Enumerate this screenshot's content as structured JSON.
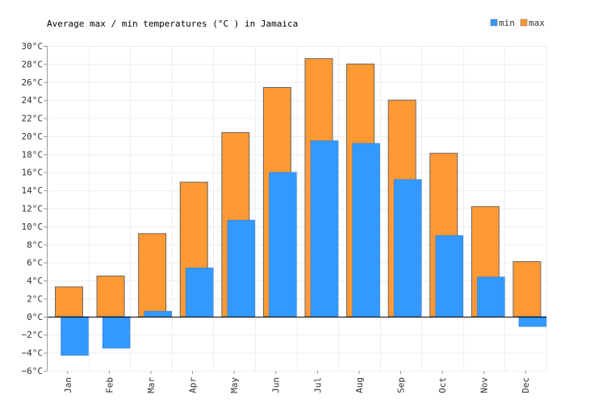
{
  "chart_data": {
    "type": "bar",
    "title": "Average max / min temperatures (°C ) in Jamaica",
    "categories": [
      "Jan",
      "Feb",
      "Mar",
      "Apr",
      "May",
      "Jun",
      "Jul",
      "Aug",
      "Sep",
      "Oct",
      "Nov",
      "Dec"
    ],
    "series": [
      {
        "name": "max",
        "color": "#ff9933",
        "values": [
          3.3,
          4.5,
          9.2,
          14.9,
          20.4,
          25.4,
          28.6,
          28.0,
          24.0,
          18.1,
          12.2,
          6.1
        ]
      },
      {
        "name": "min",
        "color": "#3399ff",
        "values": [
          -4.3,
          -3.5,
          0.6,
          5.4,
          10.7,
          16.0,
          19.5,
          19.2,
          15.2,
          9.0,
          4.4,
          -1.1
        ]
      }
    ],
    "ylim": [
      -6,
      30
    ],
    "yticks": [
      -6,
      -4,
      -2,
      0,
      2,
      4,
      6,
      8,
      10,
      12,
      14,
      16,
      18,
      20,
      22,
      24,
      26,
      28,
      30
    ],
    "y_unit": "°C",
    "legend": {
      "position": "top-right",
      "order": [
        "min",
        "max"
      ]
    },
    "grid": true
  }
}
